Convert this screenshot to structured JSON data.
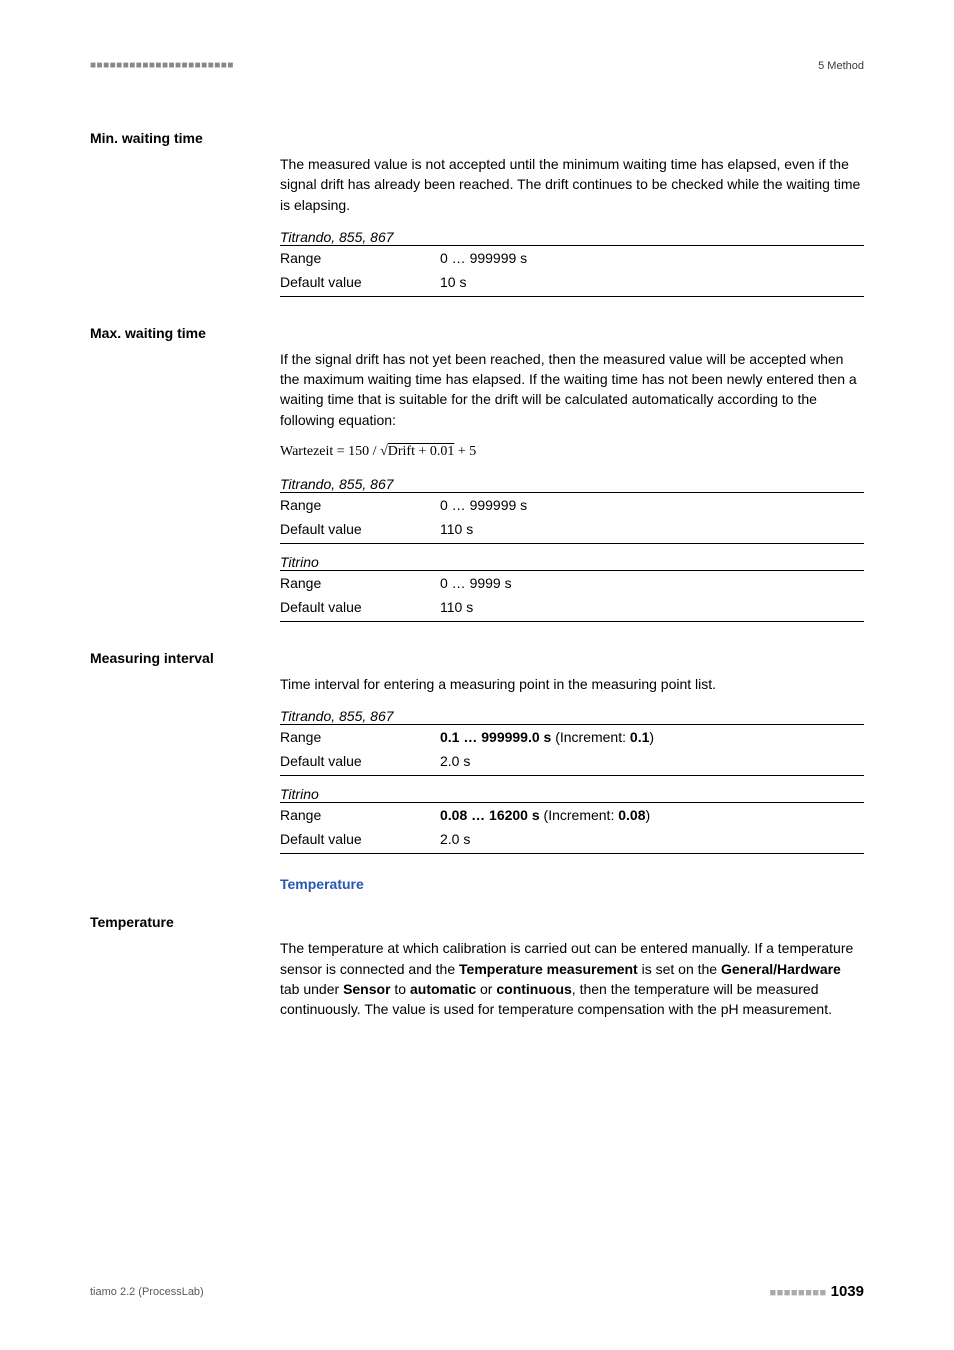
{
  "header": {
    "dashes": "■■■■■■■■■■■■■■■■■■■■■■",
    "section": "5 Method"
  },
  "sections": {
    "min_wait": {
      "heading": "Min. waiting time",
      "body": "The measured value is not accepted until the minimum waiting time has elapsed, even if the signal drift has already been reached. The drift continues to be checked while the waiting time is elapsing.",
      "devices": "Titrando, 855, 867",
      "range_label": "Range",
      "range_value": "0 … 999999 s",
      "default_label": "Default value",
      "default_value": "10 s"
    },
    "max_wait": {
      "heading": "Max. waiting time",
      "body": "If the signal drift has not yet been reached, then the measured value will be accepted when the maximum waiting time has elapsed. If the waiting time has not been newly entered then a waiting time that is suitable for the drift will be calculated automatically according to the following equation:",
      "formula_prefix": "Wartezeit = 150 / √",
      "formula_rad": "Drift + 0.01",
      "formula_suffix": " + 5",
      "dev1": "Titrando, 855, 867",
      "dev1_range_label": "Range",
      "dev1_range_value": "0 … 999999 s",
      "dev1_default_label": "Default value",
      "dev1_default_value": "110 s",
      "dev2": "Titrino",
      "dev2_range_label": "Range",
      "dev2_range_value": "0 … 9999 s",
      "dev2_default_label": "Default value",
      "dev2_default_value": "110 s"
    },
    "meas_int": {
      "heading": "Measuring interval",
      "body": "Time interval for entering a measuring point in the measuring point list.",
      "dev1": "Titrando, 855, 867",
      "dev1_range_label": "Range",
      "dev1_range_bold1": "0.1 … 999999.0 s",
      "dev1_range_mid": " (Increment: ",
      "dev1_range_bold2": "0.1",
      "dev1_range_end": ")",
      "dev1_default_label": "Default value",
      "dev1_default_value": "2.0 s",
      "dev2": "Titrino",
      "dev2_range_label": "Range",
      "dev2_range_bold1": "0.08 … 16200 s",
      "dev2_range_mid": " (Increment: ",
      "dev2_range_bold2": "0.08",
      "dev2_range_end": ")",
      "dev2_default_label": "Default value",
      "dev2_default_value": "2.0 s"
    },
    "temperature": {
      "blue_heading": "Temperature",
      "heading": "Temperature",
      "body_p1": "The temperature at which calibration is carried out can be entered manually. If a temperature sensor is connected and the ",
      "body_b1": "Temperature measurement",
      "body_p2": " is set on the ",
      "body_b2": "General/Hardware",
      "body_p3": " tab under ",
      "body_b3": "Sensor",
      "body_p4": " to ",
      "body_b4": "automatic",
      "body_p5": " or ",
      "body_b5": "continuous",
      "body_p6": ", then the temperature will be measured continuously. The value is used for temperature compensation with the pH measurement."
    }
  },
  "footer": {
    "left": "tiamo 2.2 (ProcessLab)",
    "dashes": "■■■■■■■■",
    "page": "1039"
  }
}
